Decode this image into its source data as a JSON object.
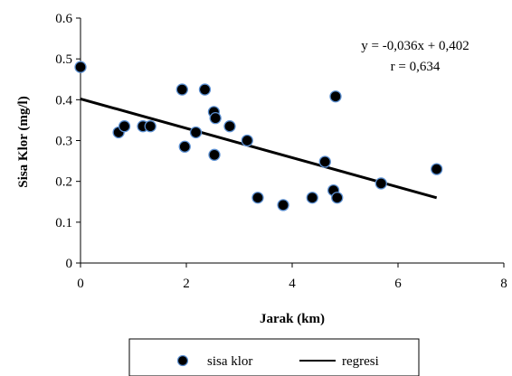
{
  "chart_data": {
    "type": "scatter",
    "xlabel": "Jarak (km)",
    "ylabel": "Sisa Klor (mg/l)",
    "xlim": [
      0,
      8
    ],
    "ylim": [
      0,
      0.6
    ],
    "x_ticks": [
      "0",
      "2",
      "4",
      "6",
      "8"
    ],
    "y_ticks": [
      "0",
      "0.1",
      "0.2",
      "0.3",
      "0.4",
      "0.5",
      "0.6"
    ],
    "grid": false,
    "legend_position": "bottom",
    "annotations": {
      "equation": "y = -0,036x + 0,402",
      "r": "r = 0,634"
    },
    "series": [
      {
        "name": "sisa klor",
        "kind": "scatter",
        "marker_color": "#000000",
        "marker_edge_color": "#5b8fd1",
        "points": [
          [
            0.0,
            0.48
          ],
          [
            0.72,
            0.32
          ],
          [
            0.83,
            0.335
          ],
          [
            1.18,
            0.335
          ],
          [
            1.32,
            0.335
          ],
          [
            1.92,
            0.425
          ],
          [
            1.97,
            0.285
          ],
          [
            2.18,
            0.32
          ],
          [
            2.35,
            0.425
          ],
          [
            2.52,
            0.37
          ],
          [
            2.55,
            0.355
          ],
          [
            2.53,
            0.265
          ],
          [
            2.82,
            0.335
          ],
          [
            3.15,
            0.3
          ],
          [
            3.35,
            0.16
          ],
          [
            3.83,
            0.142
          ],
          [
            4.38,
            0.16
          ],
          [
            4.62,
            0.248
          ],
          [
            4.78,
            0.178
          ],
          [
            4.82,
            0.408
          ],
          [
            4.85,
            0.16
          ],
          [
            5.68,
            0.195
          ],
          [
            6.73,
            0.23
          ]
        ]
      },
      {
        "name": "regresi",
        "kind": "line",
        "line_color": "#000000",
        "slope": -0.036,
        "intercept": 0.402,
        "x_range": [
          0,
          6.73
        ]
      }
    ]
  }
}
